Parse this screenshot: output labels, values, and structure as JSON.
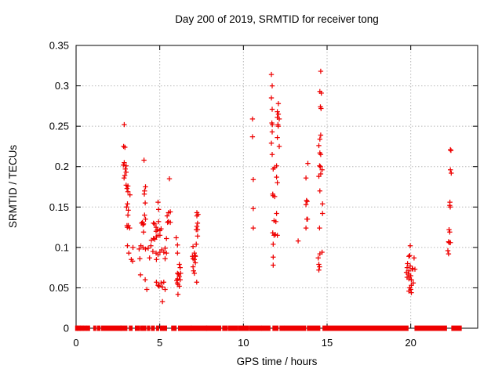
{
  "chart_data": {
    "type": "scatter",
    "title": "Day 200 of 2019, SRMTID for receiver tong",
    "xlabel": "GPS time / hours",
    "ylabel": "SRMTID / TECUs",
    "xlim": [
      0,
      24
    ],
    "ylim": [
      0,
      0.35
    ],
    "xticks": [
      0,
      5,
      10,
      15,
      20
    ],
    "xtick_labels": [
      "0",
      "5",
      "10",
      "15",
      "20"
    ],
    "yticks": [
      0,
      0.05,
      0.1,
      0.15,
      0.2,
      0.25,
      0.3,
      0.35
    ],
    "ytick_labels": [
      "0",
      "0.05",
      "0.1",
      "0.15",
      "0.2",
      "0.25",
      "0.3",
      "0.35"
    ],
    "grid": true,
    "legend": "none",
    "marker": "plus",
    "marker_color": "#ee0000",
    "axis_color": "#000000",
    "grid_color": "#b8b8b8",
    "points": [
      [
        2.88,
        0.252
      ],
      [
        2.84,
        0.225
      ],
      [
        2.92,
        0.224
      ],
      [
        2.88,
        0.205
      ],
      [
        2.82,
        0.202
      ],
      [
        2.99,
        0.201
      ],
      [
        2.94,
        0.197
      ],
      [
        2.99,
        0.193
      ],
      [
        2.91,
        0.189
      ],
      [
        2.87,
        0.186
      ],
      [
        2.99,
        0.177
      ],
      [
        3.1,
        0.176
      ],
      [
        3.04,
        0.173
      ],
      [
        3.1,
        0.169
      ],
      [
        3.22,
        0.165
      ],
      [
        3.07,
        0.154
      ],
      [
        3.02,
        0.15
      ],
      [
        3.12,
        0.146
      ],
      [
        3.1,
        0.14
      ],
      [
        3.04,
        0.127
      ],
      [
        3.06,
        0.125
      ],
      [
        3.12,
        0.127
      ],
      [
        3.2,
        0.124
      ],
      [
        3.07,
        0.102
      ],
      [
        3.15,
        0.093
      ],
      [
        3.3,
        0.085
      ],
      [
        3.38,
        0.083
      ],
      [
        3.4,
        0.1
      ],
      [
        4.06,
        0.208
      ],
      [
        4.15,
        0.175
      ],
      [
        4.09,
        0.17
      ],
      [
        4.08,
        0.166
      ],
      [
        4.13,
        0.155
      ],
      [
        4.09,
        0.14
      ],
      [
        4.15,
        0.135
      ],
      [
        3.92,
        0.13
      ],
      [
        4.0,
        0.128
      ],
      [
        3.97,
        0.131
      ],
      [
        4.03,
        0.129
      ],
      [
        4.03,
        0.119
      ],
      [
        3.77,
        0.098
      ],
      [
        3.87,
        0.102
      ],
      [
        4.0,
        0.1
      ],
      [
        4.15,
        0.098
      ],
      [
        4.31,
        0.099
      ],
      [
        3.81,
        0.086
      ],
      [
        3.85,
        0.066
      ],
      [
        4.13,
        0.06
      ],
      [
        4.23,
        0.048
      ],
      [
        4.9,
        0.156
      ],
      [
        4.93,
        0.147
      ],
      [
        4.62,
        0.13
      ],
      [
        4.7,
        0.129
      ],
      [
        4.78,
        0.125
      ],
      [
        4.93,
        0.132
      ],
      [
        4.85,
        0.122
      ],
      [
        5.01,
        0.121
      ],
      [
        4.78,
        0.12
      ],
      [
        5.08,
        0.123
      ],
      [
        4.62,
        0.111
      ],
      [
        4.7,
        0.11
      ],
      [
        4.8,
        0.113
      ],
      [
        4.9,
        0.115
      ],
      [
        5.01,
        0.115
      ],
      [
        4.5,
        0.109
      ],
      [
        5.4,
        0.111
      ],
      [
        4.47,
        0.102
      ],
      [
        4.59,
        0.095
      ],
      [
        4.78,
        0.093
      ],
      [
        4.9,
        0.091
      ],
      [
        5.01,
        0.094
      ],
      [
        5.12,
        0.097
      ],
      [
        5.24,
        0.094
      ],
      [
        5.32,
        0.099
      ],
      [
        5.4,
        0.093
      ],
      [
        4.39,
        0.087
      ],
      [
        4.8,
        0.085
      ],
      [
        5.32,
        0.086
      ],
      [
        4.8,
        0.057
      ],
      [
        4.9,
        0.053
      ],
      [
        4.96,
        0.052
      ],
      [
        5.08,
        0.056
      ],
      [
        5.16,
        0.051
      ],
      [
        5.24,
        0.057
      ],
      [
        5.32,
        0.048
      ],
      [
        5.16,
        0.033
      ],
      [
        5.44,
        0.139
      ],
      [
        5.47,
        0.131
      ],
      [
        5.52,
        0.143
      ],
      [
        5.52,
        0.132
      ],
      [
        5.58,
        0.185
      ],
      [
        5.63,
        0.144
      ],
      [
        5.63,
        0.131
      ],
      [
        5.98,
        0.112
      ],
      [
        6.06,
        0.103
      ],
      [
        6.06,
        0.093
      ],
      [
        6.17,
        0.079
      ],
      [
        6.22,
        0.075
      ],
      [
        6.06,
        0.068
      ],
      [
        6.12,
        0.067
      ],
      [
        6.25,
        0.068
      ],
      [
        6.17,
        0.064
      ],
      [
        6.06,
        0.061
      ],
      [
        6.01,
        0.059
      ],
      [
        6.22,
        0.06
      ],
      [
        6.09,
        0.054
      ],
      [
        6.17,
        0.052
      ],
      [
        6.05,
        0.056
      ],
      [
        6.09,
        0.042
      ],
      [
        7.22,
        0.143
      ],
      [
        7.29,
        0.141
      ],
      [
        7.22,
        0.139
      ],
      [
        7.26,
        0.13
      ],
      [
        7.22,
        0.126
      ],
      [
        7.26,
        0.122
      ],
      [
        7.18,
        0.122
      ],
      [
        7.26,
        0.114
      ],
      [
        7.18,
        0.104
      ],
      [
        6.99,
        0.101
      ],
      [
        7.07,
        0.093
      ],
      [
        7.1,
        0.09
      ],
      [
        6.95,
        0.089
      ],
      [
        7.13,
        0.089
      ],
      [
        6.99,
        0.086
      ],
      [
        7.07,
        0.085
      ],
      [
        7.13,
        0.081
      ],
      [
        6.99,
        0.076
      ],
      [
        7.02,
        0.071
      ],
      [
        7.07,
        0.068
      ],
      [
        7.21,
        0.057
      ],
      [
        10.54,
        0.259
      ],
      [
        10.54,
        0.237
      ],
      [
        10.59,
        0.184
      ],
      [
        10.59,
        0.148
      ],
      [
        10.59,
        0.124
      ],
      [
        11.67,
        0.314
      ],
      [
        11.72,
        0.3
      ],
      [
        11.67,
        0.285
      ],
      [
        12.09,
        0.278
      ],
      [
        11.72,
        0.271
      ],
      [
        12.03,
        0.268
      ],
      [
        12.09,
        0.265
      ],
      [
        12.03,
        0.261
      ],
      [
        12.14,
        0.259
      ],
      [
        11.7,
        0.254
      ],
      [
        11.73,
        0.252
      ],
      [
        12.06,
        0.252
      ],
      [
        12.08,
        0.25
      ],
      [
        11.72,
        0.243
      ],
      [
        12.03,
        0.236
      ],
      [
        11.67,
        0.229
      ],
      [
        12.14,
        0.225
      ],
      [
        11.72,
        0.215
      ],
      [
        11.98,
        0.201
      ],
      [
        11.87,
        0.199
      ],
      [
        11.78,
        0.197
      ],
      [
        11.98,
        0.187
      ],
      [
        12.03,
        0.18
      ],
      [
        11.75,
        0.166
      ],
      [
        11.77,
        0.164
      ],
      [
        11.87,
        0.163
      ],
      [
        11.98,
        0.142
      ],
      [
        11.83,
        0.133
      ],
      [
        11.94,
        0.132
      ],
      [
        11.75,
        0.118
      ],
      [
        11.91,
        0.116
      ],
      [
        11.83,
        0.115
      ],
      [
        12.03,
        0.115
      ],
      [
        11.78,
        0.104
      ],
      [
        11.78,
        0.088
      ],
      [
        11.78,
        0.078
      ],
      [
        13.27,
        0.108
      ],
      [
        13.85,
        0.204
      ],
      [
        13.74,
        0.186
      ],
      [
        13.77,
        0.158
      ],
      [
        13.81,
        0.157
      ],
      [
        13.74,
        0.153
      ],
      [
        13.79,
        0.135
      ],
      [
        13.83,
        0.135
      ],
      [
        13.74,
        0.124
      ],
      [
        14.62,
        0.318
      ],
      [
        14.57,
        0.293
      ],
      [
        14.66,
        0.291
      ],
      [
        14.6,
        0.274
      ],
      [
        14.64,
        0.272
      ],
      [
        14.62,
        0.239
      ],
      [
        14.57,
        0.234
      ],
      [
        14.51,
        0.226
      ],
      [
        14.57,
        0.217
      ],
      [
        14.62,
        0.215
      ],
      [
        14.55,
        0.201
      ],
      [
        14.6,
        0.2
      ],
      [
        14.7,
        0.196
      ],
      [
        14.62,
        0.191
      ],
      [
        14.51,
        0.188
      ],
      [
        14.57,
        0.17
      ],
      [
        14.73,
        0.154
      ],
      [
        14.73,
        0.142
      ],
      [
        14.55,
        0.124
      ],
      [
        14.7,
        0.094
      ],
      [
        14.57,
        0.092
      ],
      [
        14.47,
        0.087
      ],
      [
        14.51,
        0.079
      ],
      [
        14.55,
        0.076
      ],
      [
        14.51,
        0.072
      ],
      [
        19.97,
        0.102
      ],
      [
        19.94,
        0.09
      ],
      [
        19.89,
        0.089
      ],
      [
        20.2,
        0.087
      ],
      [
        19.81,
        0.08
      ],
      [
        19.97,
        0.077
      ],
      [
        19.78,
        0.075
      ],
      [
        20.09,
        0.074
      ],
      [
        20.12,
        0.073
      ],
      [
        20.25,
        0.073
      ],
      [
        19.89,
        0.071
      ],
      [
        19.74,
        0.069
      ],
      [
        19.85,
        0.067
      ],
      [
        19.97,
        0.065
      ],
      [
        20.0,
        0.065
      ],
      [
        19.78,
        0.063
      ],
      [
        19.89,
        0.061
      ],
      [
        20.04,
        0.06
      ],
      [
        20.15,
        0.056
      ],
      [
        20.04,
        0.053
      ],
      [
        19.94,
        0.05
      ],
      [
        20.0,
        0.048
      ],
      [
        19.89,
        0.046
      ],
      [
        20.04,
        0.044
      ],
      [
        22.37,
        0.221
      ],
      [
        22.4,
        0.22
      ],
      [
        22.37,
        0.196
      ],
      [
        22.42,
        0.192
      ],
      [
        22.34,
        0.156
      ],
      [
        22.33,
        0.152
      ],
      [
        22.36,
        0.15
      ],
      [
        22.29,
        0.122
      ],
      [
        22.33,
        0.119
      ],
      [
        22.26,
        0.107
      ],
      [
        22.3,
        0.106
      ],
      [
        22.37,
        0.106
      ],
      [
        22.22,
        0.096
      ],
      [
        22.26,
        0.092
      ]
    ],
    "zero_band_segments": [
      [
        0.0,
        0.06
      ],
      [
        0.1,
        0.24
      ],
      [
        0.27,
        0.39
      ],
      [
        0.46,
        0.58
      ],
      [
        0.67,
        0.78
      ],
      [
        1.08,
        1.15
      ],
      [
        1.3,
        1.4
      ],
      [
        1.55,
        2.66
      ],
      [
        2.7,
        3.01
      ],
      [
        3.21,
        3.32
      ],
      [
        3.57,
        3.75
      ],
      [
        3.87,
        3.94
      ],
      [
        4.03,
        4.14
      ],
      [
        4.29,
        4.37
      ],
      [
        4.53,
        4.65
      ],
      [
        4.84,
        4.91
      ],
      [
        5.07,
        5.18
      ],
      [
        5.27,
        5.38
      ],
      [
        5.74,
        5.95
      ],
      [
        6.15,
        6.86
      ],
      [
        6.9,
        7.78
      ],
      [
        7.82,
        8.62
      ],
      [
        8.79,
        9.02
      ],
      [
        9.15,
        9.61
      ],
      [
        9.72,
        10.27
      ],
      [
        10.39,
        11.04
      ],
      [
        11.12,
        11.56
      ],
      [
        11.79,
        12.04
      ],
      [
        12.21,
        12.4
      ],
      [
        12.5,
        13.69
      ],
      [
        13.85,
        14.54
      ],
      [
        14.78,
        19.81
      ],
      [
        20.28,
        22.11
      ],
      [
        22.48,
        22.99
      ]
    ]
  }
}
